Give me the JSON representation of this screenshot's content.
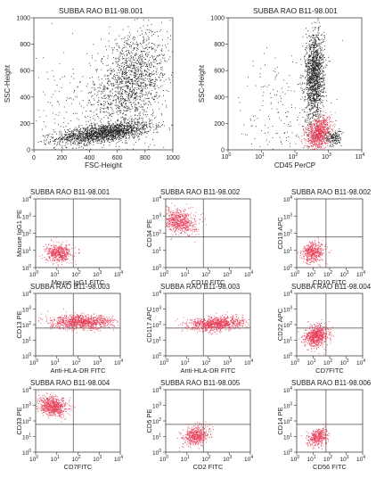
{
  "chart_data": [
    {
      "type": "scatter",
      "title": "SUBBA RAO B11-98.001",
      "xlabel": "FSC-Height",
      "ylabel": "SSC-Height",
      "scale": "linear",
      "xlim": [
        0,
        1000
      ],
      "ylim": [
        0,
        1000
      ],
      "xticks": [
        0,
        200,
        400,
        600,
        800,
        1000
      ],
      "yticks": [
        0,
        200,
        400,
        600,
        800,
        1000
      ],
      "quadrants": false,
      "populations": [
        {
          "color": "#222222",
          "n": 1700,
          "cx": 500,
          "cy": 130,
          "sx": 170,
          "sy": 40,
          "rho": 0.55
        },
        {
          "color": "#222222",
          "n": 1500,
          "cx": 700,
          "cy": 520,
          "sx": 140,
          "sy": 190,
          "rho": 0.35
        },
        {
          "color": "#333333",
          "n": 250,
          "cx": 350,
          "cy": 300,
          "sx": 250,
          "sy": 220,
          "rho": 0.0
        }
      ]
    },
    {
      "type": "scatter",
      "title": "SUBBA RAO B11-98.001",
      "xlabel": "CD45 PerCP",
      "ylabel": "SSC-Height",
      "scale": "log-x",
      "xlim": [
        1,
        10000
      ],
      "ylim": [
        0,
        1000
      ],
      "yticks": [
        0,
        200,
        400,
        600,
        800,
        1000
      ],
      "quadrants": false,
      "populations": [
        {
          "color": "#222222",
          "n": 1400,
          "cx": 380,
          "cy": 560,
          "sx": 0.14,
          "sy": 170,
          "rho": 0.1
        },
        {
          "color": "#e8405a",
          "n": 900,
          "cx": 500,
          "cy": 130,
          "sx": 0.18,
          "sy": 60,
          "rho": 0.3
        },
        {
          "color": "#222222",
          "n": 150,
          "cx": 1400,
          "cy": 90,
          "sx": 0.12,
          "sy": 30,
          "rho": 0.0
        },
        {
          "color": "#333333",
          "n": 200,
          "cx": 60,
          "cy": 300,
          "sx": 0.7,
          "sy": 250,
          "rho": 0.0
        }
      ]
    },
    {
      "type": "scatter",
      "title": "SUBBA RAO B11-98.001",
      "xlabel": "Mouse IgG1 FITC",
      "ylabel": "Mouse IgG1 PE",
      "scale": "log",
      "xlim": [
        1,
        10000
      ],
      "ylim": [
        1,
        10000
      ],
      "quadrants": true,
      "quad_x": 60,
      "quad_y": 60,
      "populations": [
        {
          "color": "#e8405a",
          "n": 500,
          "cx": 12,
          "cy": 7,
          "sx": 0.3,
          "sy": 0.25,
          "rho": 0.1
        }
      ]
    },
    {
      "type": "scatter",
      "title": "SUBBA RAO B11-98.002",
      "xlabel": "CD10 FITC",
      "ylabel": "CD34 PE",
      "scale": "log",
      "xlim": [
        1,
        10000
      ],
      "ylim": [
        1,
        10000
      ],
      "quadrants": true,
      "quad_x": 60,
      "quad_y": 60,
      "populations": [
        {
          "color": "#e8405a",
          "n": 650,
          "cx": 4,
          "cy": 500,
          "sx": 0.4,
          "sy": 0.35,
          "rho": -0.2
        }
      ]
    },
    {
      "type": "scatter",
      "title": "SUBBA RAO B11-98.002",
      "xlabel": "CD10 FITC",
      "ylabel": "CD19 APC",
      "scale": "log",
      "xlim": [
        1,
        10000
      ],
      "ylim": [
        1,
        10000
      ],
      "quadrants": true,
      "quad_x": 60,
      "quad_y": 60,
      "populations": [
        {
          "color": "#e8405a",
          "n": 450,
          "cx": 10,
          "cy": 8,
          "sx": 0.35,
          "sy": 0.3,
          "rho": 0.1
        }
      ]
    },
    {
      "type": "scatter",
      "title": "SUBBA RAO B11-98.003",
      "xlabel": "Anti-HLA-DR FITC",
      "ylabel": "CD13 PE",
      "scale": "log",
      "xlim": [
        1,
        10000
      ],
      "ylim": [
        1,
        10000
      ],
      "quadrants": true,
      "quad_x": 60,
      "quad_y": 60,
      "populations": [
        {
          "color": "#e8405a",
          "n": 1000,
          "cx": 150,
          "cy": 150,
          "sx": 0.75,
          "sy": 0.22,
          "rho": 0.0
        }
      ]
    },
    {
      "type": "scatter",
      "title": "SUBBA RAO B11-98.003",
      "xlabel": "Anti-HLA-DR FITC",
      "ylabel": "CD117 APC",
      "scale": "log",
      "xlim": [
        1,
        10000
      ],
      "ylim": [
        1,
        10000
      ],
      "quadrants": true,
      "quad_x": 60,
      "quad_y": 60,
      "populations": [
        {
          "color": "#e8405a",
          "n": 950,
          "cx": 250,
          "cy": 120,
          "sx": 0.65,
          "sy": 0.22,
          "rho": 0.2
        }
      ]
    },
    {
      "type": "scatter",
      "title": "SUBBA RAO B11-98.004",
      "xlabel": "CD7FITC",
      "ylabel": "CD22 APC",
      "scale": "log",
      "xlim": [
        1,
        10000
      ],
      "ylim": [
        1,
        10000
      ],
      "quadrants": true,
      "quad_x": 60,
      "quad_y": 60,
      "populations": [
        {
          "color": "#e8405a",
          "n": 700,
          "cx": 15,
          "cy": 20,
          "sx": 0.35,
          "sy": 0.35,
          "rho": 0.2
        }
      ]
    },
    {
      "type": "scatter",
      "title": "SUBBA RAO B11-98.004",
      "xlabel": "CD7FITC",
      "ylabel": "CD33 PE",
      "scale": "log",
      "xlim": [
        1,
        10000
      ],
      "ylim": [
        1,
        10000
      ],
      "quadrants": true,
      "quad_x": 60,
      "quad_y": 60,
      "populations": [
        {
          "color": "#e8405a",
          "n": 700,
          "cx": 6,
          "cy": 900,
          "sx": 0.35,
          "sy": 0.3,
          "rho": -0.2
        }
      ]
    },
    {
      "type": "scatter",
      "title": "SUBBA RAO B11-98.005",
      "xlabel": "CD2 FITC",
      "ylabel": "CD5 PE",
      "scale": "log",
      "xlim": [
        1,
        10000
      ],
      "ylim": [
        1,
        10000
      ],
      "quadrants": true,
      "quad_x": 60,
      "quad_y": 60,
      "populations": [
        {
          "color": "#e8405a",
          "n": 500,
          "cx": 25,
          "cy": 12,
          "sx": 0.3,
          "sy": 0.3,
          "rho": 0.2
        }
      ]
    },
    {
      "type": "scatter",
      "title": "SUBBA RAO B11-98.006",
      "xlabel": "CD56 FITC",
      "ylabel": "CD14 PE",
      "scale": "log",
      "xlim": [
        1,
        10000
      ],
      "ylim": [
        1,
        10000
      ],
      "quadrants": true,
      "quad_x": 60,
      "quad_y": 60,
      "populations": [
        {
          "color": "#e8405a",
          "n": 380,
          "cx": 20,
          "cy": 10,
          "sx": 0.28,
          "sy": 0.28,
          "rho": 0.3
        }
      ]
    }
  ]
}
